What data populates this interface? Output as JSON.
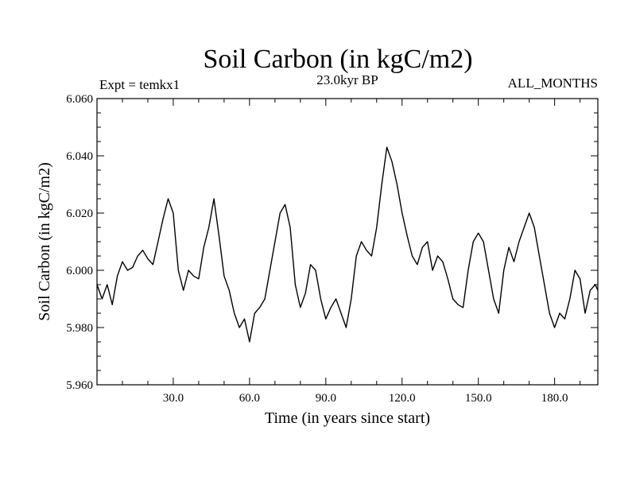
{
  "chart_data": {
    "type": "line",
    "title": "Soil Carbon (in kgC/m2)",
    "subtitle_left": "Expt = temkx1",
    "subtitle_center": "23.0kyr BP",
    "subtitle_right": "ALL_MONTHS",
    "xlabel": "Time (in years since start)",
    "ylabel": "Soil Carbon (in kgC/m2)",
    "xlim": [
      0,
      197
    ],
    "ylim": [
      5.96,
      6.06
    ],
    "x_ticks": [
      30,
      60,
      90,
      120,
      150,
      180
    ],
    "x_tick_labels": [
      "30.0",
      "60.0",
      "90.0",
      "120.0",
      "150.0",
      "180.0"
    ],
    "y_ticks": [
      5.96,
      5.98,
      6.0,
      6.02,
      6.04,
      6.06
    ],
    "y_tick_labels": [
      "5.960",
      "5.980",
      "6.000",
      "6.020",
      "6.040",
      "6.060"
    ],
    "series": [
      {
        "name": "Soil Carbon",
        "x": [
          0,
          2,
          4,
          6,
          8,
          10,
          12,
          14,
          16,
          18,
          20,
          22,
          24,
          26,
          28,
          30,
          32,
          34,
          36,
          38,
          40,
          42,
          44,
          46,
          48,
          50,
          52,
          54,
          56,
          58,
          60,
          62,
          64,
          66,
          68,
          70,
          72,
          74,
          76,
          78,
          80,
          82,
          84,
          86,
          88,
          90,
          92,
          94,
          96,
          98,
          100,
          102,
          104,
          106,
          108,
          110,
          112,
          114,
          116,
          118,
          120,
          122,
          124,
          126,
          128,
          130,
          132,
          134,
          136,
          138,
          140,
          142,
          144,
          146,
          148,
          150,
          152,
          154,
          156,
          158,
          160,
          162,
          164,
          166,
          168,
          170,
          172,
          174,
          176,
          178,
          180,
          182,
          184,
          186,
          188,
          190,
          192,
          194,
          196,
          197
        ],
        "y": [
          5.995,
          5.99,
          5.995,
          5.988,
          5.998,
          6.003,
          6.0,
          6.001,
          6.005,
          6.007,
          6.004,
          6.002,
          6.01,
          6.018,
          6.025,
          6.02,
          6.0,
          5.993,
          6.0,
          5.998,
          5.997,
          6.008,
          6.015,
          6.025,
          6.012,
          5.998,
          5.993,
          5.985,
          5.98,
          5.983,
          5.975,
          5.985,
          5.987,
          5.99,
          6.0,
          6.01,
          6.02,
          6.023,
          6.015,
          5.995,
          5.987,
          5.992,
          6.002,
          6.0,
          5.99,
          5.983,
          5.987,
          5.99,
          5.985,
          5.98,
          5.99,
          6.005,
          6.01,
          6.007,
          6.005,
          6.015,
          6.03,
          6.043,
          6.038,
          6.03,
          6.02,
          6.012,
          6.005,
          6.002,
          6.008,
          6.01,
          6.0,
          6.005,
          6.003,
          5.997,
          5.99,
          5.988,
          5.987,
          6.0,
          6.01,
          6.013,
          6.01,
          6.0,
          5.99,
          5.985,
          6.0,
          6.008,
          6.003,
          6.01,
          6.015,
          6.02,
          6.015,
          6.005,
          5.995,
          5.985,
          5.98,
          5.985,
          5.983,
          5.99,
          6.0,
          5.997,
          5.985,
          5.993,
          5.995,
          5.993
        ]
      }
    ]
  }
}
